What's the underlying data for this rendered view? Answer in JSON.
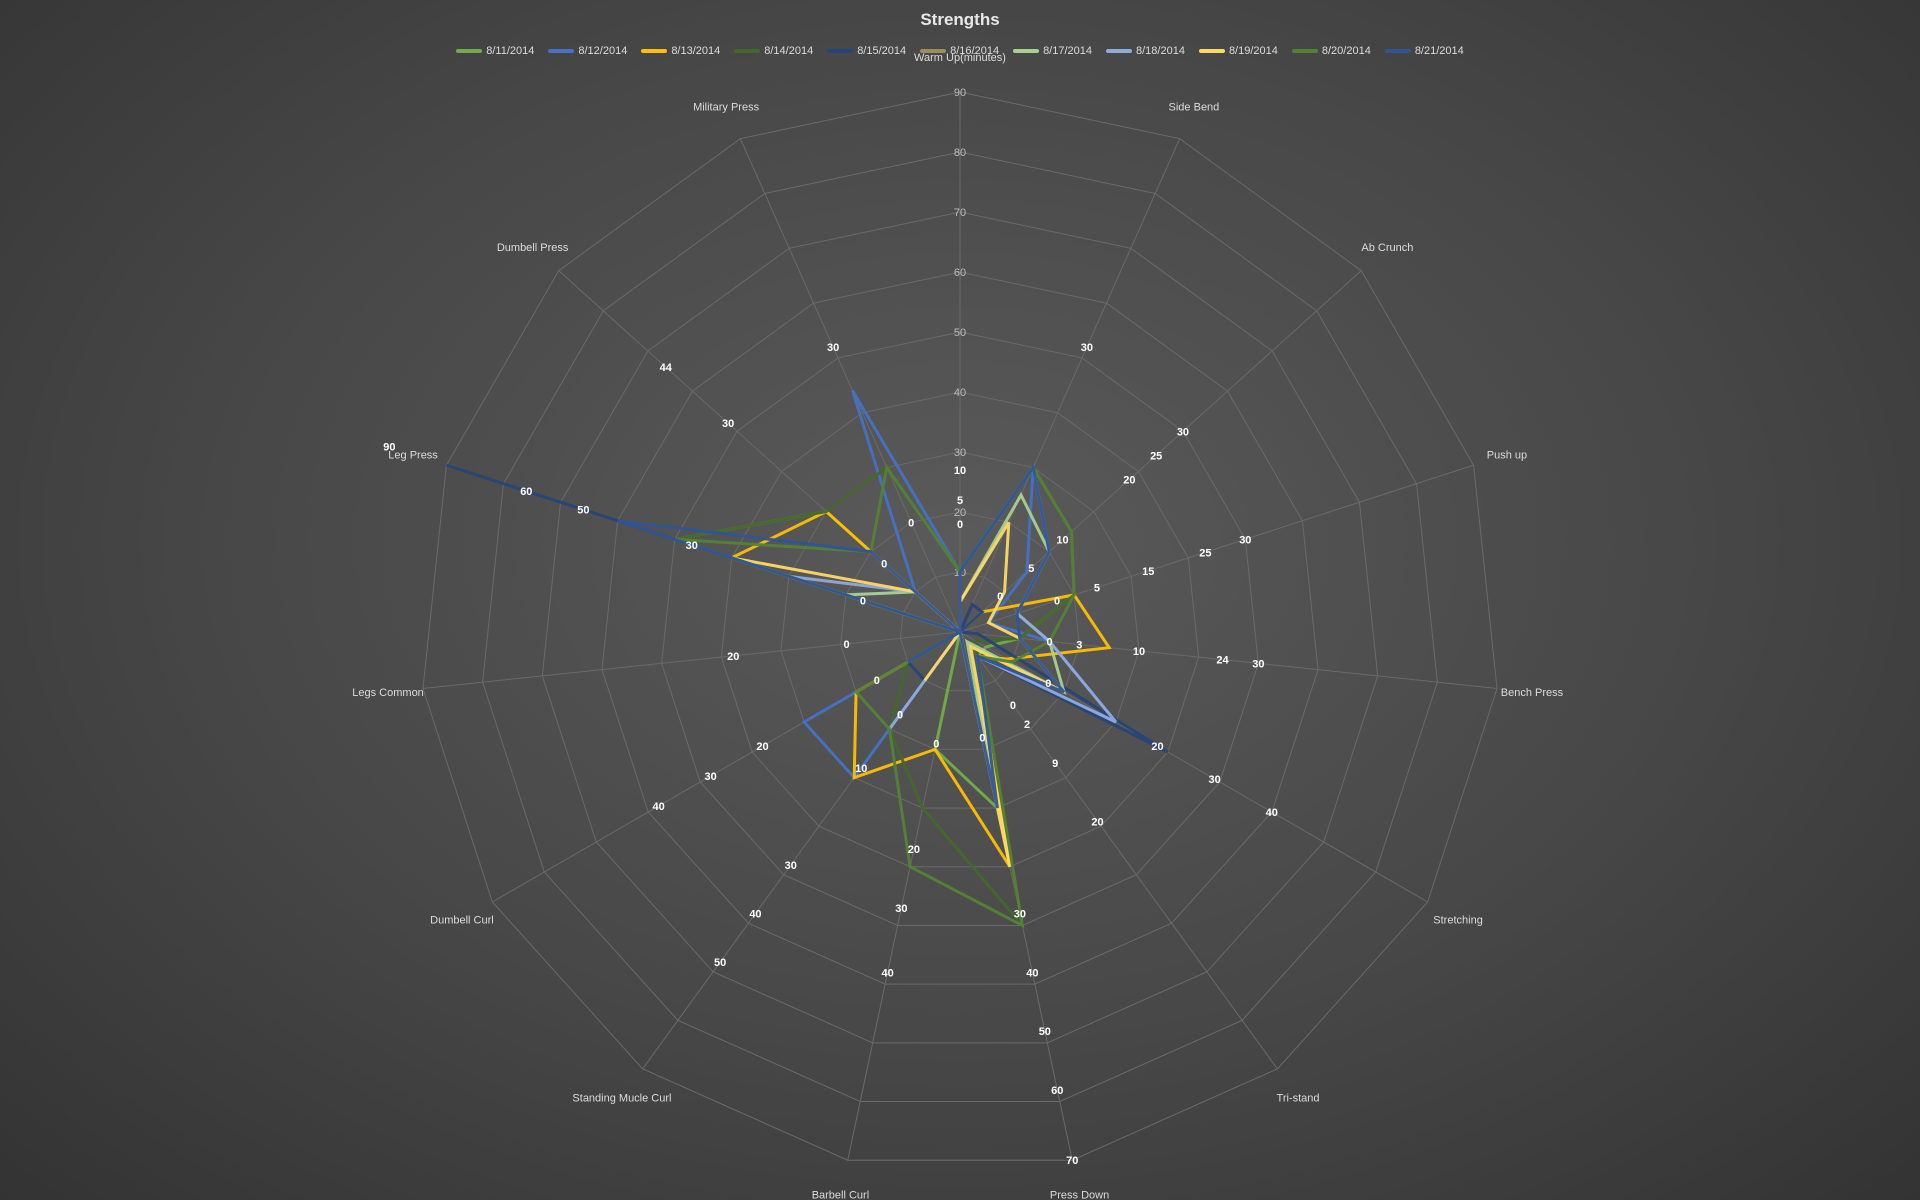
{
  "chart_data": {
    "type": "radar",
    "title": "Strengths",
    "legend_position": "top",
    "grid": true,
    "rlim": [
      0,
      90
    ],
    "rticks": [
      0,
      10,
      20,
      30,
      40,
      50,
      60,
      70,
      80,
      90
    ],
    "categories": [
      "Warm Up(minutes)",
      "Side Bend",
      "Ab Crunch",
      "Push up",
      "Bench Press",
      "Stretching",
      "Tri-stand",
      "Press Down",
      "Barbell Curl",
      "Standing Mucle Curl",
      "Dumbell Curl",
      "Legs Common",
      "Leg Press",
      "Dumbell Press",
      "Military Press"
    ],
    "series": [
      {
        "name": "8/11/2014",
        "color": "#70ad47",
        "values": [
          10,
          30,
          25,
          20,
          10,
          5,
          5,
          30,
          20,
          0,
          0,
          0,
          50,
          30,
          0
        ]
      },
      {
        "name": "8/12/2014",
        "color": "#4472c4",
        "values": [
          10,
          30,
          15,
          5,
          15,
          30,
          5,
          30,
          0,
          30,
          30,
          0,
          20,
          10,
          44
        ]
      },
      {
        "name": "8/13/2014",
        "color": "#ffc000",
        "values": [
          0,
          0,
          5,
          20,
          25,
          9,
          5,
          40,
          20,
          30,
          20,
          0,
          40,
          30,
          0
        ]
      },
      {
        "name": "8/14/2014",
        "color": "#43682b",
        "values": [
          10,
          30,
          25,
          20,
          10,
          3,
          5,
          50,
          30,
          20,
          10,
          0,
          50,
          30,
          30
        ]
      },
      {
        "name": "8/15/2014",
        "color": "#264478",
        "values": [
          0,
          5,
          5,
          0,
          3,
          40,
          5,
          30,
          0,
          10,
          10,
          0,
          90,
          0,
          0
        ]
      },
      {
        "name": "8/16/2014",
        "color": "#9e8e5a",
        "values": [
          0,
          0,
          0,
          0,
          0,
          0,
          0,
          0,
          0,
          0,
          0,
          0,
          0,
          0,
          0
        ]
      },
      {
        "name": "8/17/2014",
        "color": "#a9d18e",
        "values": [
          5,
          25,
          20,
          10,
          15,
          20,
          2,
          30,
          0,
          0,
          0,
          0,
          20,
          10,
          0
        ]
      },
      {
        "name": "8/18/2014",
        "color": "#8faadc",
        "values": [
          10,
          30,
          20,
          10,
          15,
          30,
          5,
          30,
          0,
          20,
          0,
          0,
          30,
          10,
          0
        ]
      },
      {
        "name": "8/19/2014",
        "color": "#ffd966",
        "values": [
          5,
          20,
          10,
          5,
          10,
          20,
          3,
          40,
          0,
          10,
          0,
          0,
          40,
          10,
          0
        ]
      },
      {
        "name": "8/20/2014",
        "color": "#548235",
        "values": [
          10,
          30,
          25,
          20,
          15,
          10,
          5,
          50,
          40,
          20,
          20,
          0,
          50,
          20,
          30
        ]
      },
      {
        "name": "8/21/2014",
        "color": "#2f5597",
        "values": [
          10,
          30,
          20,
          10,
          10,
          20,
          5,
          30,
          0,
          0,
          10,
          0,
          60,
          20,
          0
        ]
      }
    ],
    "data_labels": [
      {
        "text": "10",
        "cat": 0,
        "r": 27
      },
      {
        "text": "5",
        "cat": 0,
        "r": 22
      },
      {
        "text": "0",
        "cat": 0,
        "r": 18
      },
      {
        "text": "30",
        "cat": 1,
        "r": 52
      },
      {
        "text": "30",
        "cat": 2,
        "r": 50
      },
      {
        "text": "25",
        "cat": 2,
        "r": 44
      },
      {
        "text": "20",
        "cat": 2,
        "r": 38
      },
      {
        "text": "10",
        "cat": 2,
        "r": 23
      },
      {
        "text": "5",
        "cat": 2,
        "r": 16
      },
      {
        "text": "0",
        "cat": 2,
        "r": 9
      },
      {
        "text": "30",
        "cat": 3,
        "r": 50
      },
      {
        "text": "25",
        "cat": 3,
        "r": 43
      },
      {
        "text": "15",
        "cat": 3,
        "r": 33
      },
      {
        "text": "5",
        "cat": 3,
        "r": 24
      },
      {
        "text": "0",
        "cat": 3,
        "r": 17
      },
      {
        "text": "30",
        "cat": 4,
        "r": 50
      },
      {
        "text": "24",
        "cat": 4,
        "r": 44
      },
      {
        "text": "10",
        "cat": 4,
        "r": 30
      },
      {
        "text": "3",
        "cat": 4,
        "r": 20
      },
      {
        "text": "0",
        "cat": 4,
        "r": 15
      },
      {
        "text": "40",
        "cat": 5,
        "r": 60
      },
      {
        "text": "30",
        "cat": 5,
        "r": 49
      },
      {
        "text": "20",
        "cat": 5,
        "r": 38
      },
      {
        "text": "0",
        "cat": 5,
        "r": 17
      },
      {
        "text": "20",
        "cat": 6,
        "r": 39
      },
      {
        "text": "9",
        "cat": 6,
        "r": 27
      },
      {
        "text": "2",
        "cat": 6,
        "r": 19
      },
      {
        "text": "0",
        "cat": 6,
        "r": 15
      },
      {
        "text": "70",
        "cat": 7,
        "r": 90
      },
      {
        "text": "60",
        "cat": 7,
        "r": 78
      },
      {
        "text": "50",
        "cat": 7,
        "r": 68
      },
      {
        "text": "40",
        "cat": 7,
        "r": 58
      },
      {
        "text": "30",
        "cat": 7,
        "r": 48
      },
      {
        "text": "0",
        "cat": 7,
        "r": 18
      },
      {
        "text": "40",
        "cat": 8,
        "r": 58
      },
      {
        "text": "30",
        "cat": 8,
        "r": 47
      },
      {
        "text": "20",
        "cat": 8,
        "r": 37
      },
      {
        "text": "0",
        "cat": 8,
        "r": 19
      },
      {
        "text": "50",
        "cat": 9,
        "r": 68
      },
      {
        "text": "40",
        "cat": 9,
        "r": 58
      },
      {
        "text": "30",
        "cat": 9,
        "r": 48
      },
      {
        "text": "10",
        "cat": 9,
        "r": 28
      },
      {
        "text": "0",
        "cat": 9,
        "r": 17
      },
      {
        "text": "40",
        "cat": 10,
        "r": 58
      },
      {
        "text": "30",
        "cat": 10,
        "r": 48
      },
      {
        "text": "20",
        "cat": 10,
        "r": 38
      },
      {
        "text": "0",
        "cat": 10,
        "r": 16
      },
      {
        "text": "20",
        "cat": 11,
        "r": 38
      },
      {
        "text": "0",
        "cat": 11,
        "r": 19
      },
      {
        "text": "90",
        "cat": 12,
        "r": 100
      },
      {
        "text": "60",
        "cat": 12,
        "r": 76
      },
      {
        "text": "50",
        "cat": 12,
        "r": 66
      },
      {
        "text": "30",
        "cat": 12,
        "r": 47
      },
      {
        "text": "0",
        "cat": 12,
        "r": 17
      },
      {
        "text": "44",
        "cat": 13,
        "r": 66
      },
      {
        "text": "30",
        "cat": 13,
        "r": 52
      },
      {
        "text": "0",
        "cat": 13,
        "r": 17
      },
      {
        "text": "30",
        "cat": 14,
        "r": 52
      },
      {
        "text": "0",
        "cat": 14,
        "r": 20
      }
    ]
  }
}
